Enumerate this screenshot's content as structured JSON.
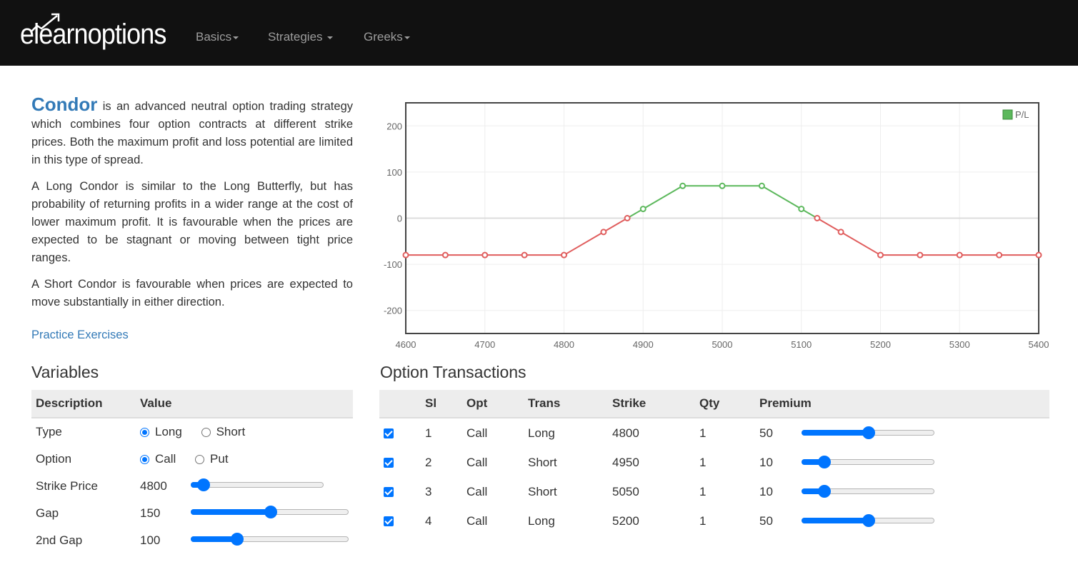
{
  "nav": {
    "logo_text": "elearnoptions",
    "items": [
      {
        "label": "Basics"
      },
      {
        "label": "Strategies"
      },
      {
        "label": "Greeks"
      }
    ]
  },
  "intro": {
    "term": "Condor",
    "p1_rest": " is an advanced neutral option trading strategy which combines four option contracts at different strike prices. Both the maximum profit and loss potential are limited in this type of spread.",
    "p2": "A Long Condor is similar to the Long Butterfly, but has probability of returning profits in a wider range at the cost of lower maximum profit. It is favourable when the prices are expected to be stagnant or moving between tight price ranges.",
    "p3": "A Short Condor is favourable when prices are expected to move substantially in either direction.",
    "link": "Practice Exercises"
  },
  "variables": {
    "title": "Variables",
    "headers": [
      "Description",
      "Value"
    ],
    "type": {
      "label": "Type",
      "options": [
        "Long",
        "Short"
      ],
      "selected": "Long"
    },
    "option": {
      "label": "Option",
      "options": [
        "Call",
        "Put"
      ],
      "selected": "Call"
    },
    "strike": {
      "label": "Strike Price",
      "value": "4800",
      "fraction": 0.05
    },
    "gap": {
      "label": "Gap",
      "value": "150",
      "fraction": 0.5
    },
    "gap2": {
      "label": "2nd Gap",
      "value": "100",
      "fraction": 0.27
    }
  },
  "transactions": {
    "title": "Option Transactions",
    "headers": [
      "Sl",
      "Opt",
      "Trans",
      "Strike",
      "Qty",
      "Premium"
    ],
    "rows": [
      {
        "sl": "1",
        "opt": "Call",
        "trans": "Long",
        "strike": "4800",
        "qty": "1",
        "premium": "50",
        "fraction": 0.5
      },
      {
        "sl": "2",
        "opt": "Call",
        "trans": "Short",
        "strike": "4950",
        "qty": "1",
        "premium": "10",
        "fraction": 0.13
      },
      {
        "sl": "3",
        "opt": "Call",
        "trans": "Short",
        "strike": "5050",
        "qty": "1",
        "premium": "10",
        "fraction": 0.13
      },
      {
        "sl": "4",
        "opt": "Call",
        "trans": "Long",
        "strike": "5200",
        "qty": "1",
        "premium": "50",
        "fraction": 0.5
      }
    ]
  },
  "chart_data": {
    "type": "line",
    "legend": "P/L",
    "legend_position": "top-right",
    "xlim": [
      4600,
      5400
    ],
    "ylim": [
      -250,
      250
    ],
    "x_ticks": [
      4600,
      4700,
      4800,
      4900,
      5000,
      5100,
      5200,
      5300,
      5400
    ],
    "y_ticks": [
      200,
      100,
      0,
      -100,
      -200
    ],
    "x": [
      4600,
      4650,
      4700,
      4750,
      4800,
      4850,
      4880,
      4900,
      4950,
      5000,
      5050,
      5100,
      5120,
      5150,
      5200,
      5250,
      5300,
      5350,
      5400
    ],
    "y": [
      -80,
      -80,
      -80,
      -80,
      -80,
      -30,
      0,
      20,
      70,
      70,
      70,
      20,
      0,
      -30,
      -80,
      -80,
      -80,
      -80,
      -80
    ],
    "grid": true,
    "colors": {
      "profit": "#5cb85c",
      "loss": "#e05d5d"
    }
  }
}
